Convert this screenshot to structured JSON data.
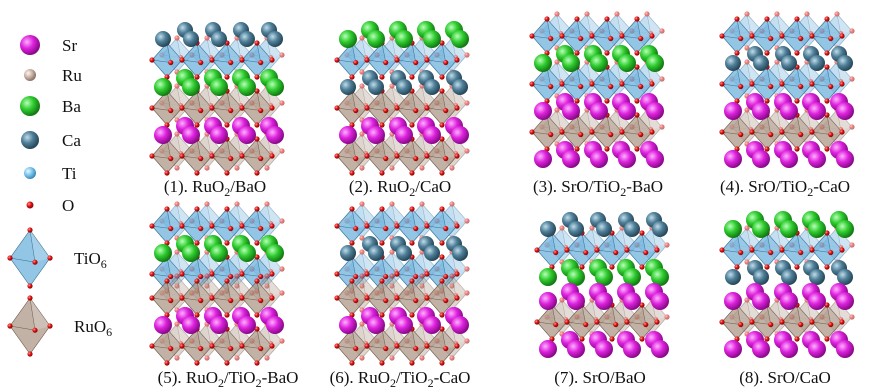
{
  "legend": [
    {
      "label": [
        "Sr"
      ]
    },
    {
      "label": [
        "Ru"
      ]
    },
    {
      "label": [
        "Ba"
      ]
    },
    {
      "label": [
        "Ca"
      ]
    },
    {
      "label": [
        "Ti"
      ]
    },
    {
      "label": [
        "O"
      ]
    },
    {
      "label": [
        "TiO",
        "6"
      ]
    },
    {
      "label": [
        "RuO",
        "6"
      ]
    }
  ],
  "panels": [
    {
      "caption": [
        "(1). RuO",
        "2",
        "/BaO"
      ]
    },
    {
      "caption": [
        "(2). RuO",
        "2",
        "/CaO"
      ]
    },
    {
      "caption": [
        "(3). SrO/TiO",
        "2",
        "-BaO"
      ]
    },
    {
      "caption": [
        "(4). SrO/TiO",
        "2",
        "-CaO"
      ]
    },
    {
      "caption": [
        "(5). RuO",
        "2",
        "/TiO",
        "2",
        "-BaO"
      ]
    },
    {
      "caption": [
        "(6). RuO",
        "2",
        "/TiO",
        "2",
        "-CaO"
      ]
    },
    {
      "caption": [
        "(7). SrO/BaO"
      ]
    },
    {
      "caption": [
        "(8). SrO/CaO"
      ]
    }
  ]
}
